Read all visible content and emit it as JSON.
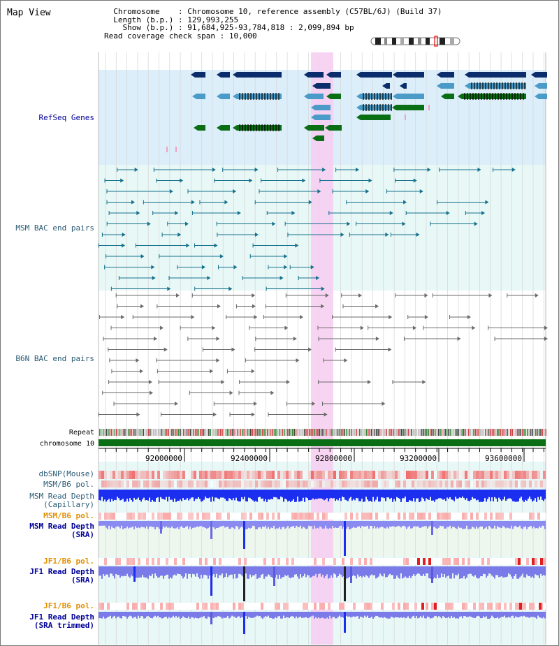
{
  "page": {
    "title": "Map View"
  },
  "info": {
    "chromosome_label": "Chromosome",
    "chromosome_value": "Chromosome 10, reference assembly (C57BL/6J) (Build 37)",
    "length_label": "Length (b.p.)",
    "length_value": "129,993,255",
    "show_label": "Show (b.p.)",
    "show_value": "91,684,925-93,784,818 : 2,099,894 bp",
    "coverage_label": "Read coverage check span",
    "coverage_value": "10,000"
  },
  "tracks": {
    "refseq": "RefSeq Genes",
    "msm_bac": "MSM BAC end pairs",
    "b6n_bac": "B6N BAC end pairs",
    "repeat": "Repeat",
    "chromosome": "chromosome 10",
    "dbsnp": "dbSNP(Mouse)",
    "msm_b6_pol": "MSM/B6 pol.",
    "msm_cap": [
      "MSM Read Depth",
      "(Capillary)"
    ],
    "msm_b6_pol2": "MSM/B6 pol.",
    "msm_sra": [
      "MSM Read Depth",
      "(SRA)"
    ],
    "jf1_b6_pol": "JF1/B6 pol.",
    "jf1_sra": [
      "JF1 Read Depth",
      "(SRA)"
    ],
    "jf1_b6_pol2": "JF1/B6 pol.",
    "jf1_trim": [
      "JF1 Read Depth",
      "(SRA trimmed)"
    ]
  },
  "axis": {
    "ticks": [
      "92000000",
      "92400000",
      "92800000",
      "93200000",
      "93600000"
    ]
  },
  "colors": {
    "refseq_bg": "#dbeefa",
    "bac_bg": "#e8f8f6",
    "highlight": "#f7cdf1",
    "gene_dark": "#0b2d6b",
    "gene_mid": "#4a9bc8",
    "gene_green": "#0a6e14",
    "msm_line": "#13708c",
    "b6n_line": "#6a6a6a",
    "chrom": "#0a6e14",
    "snp": "#ee6b6b",
    "pol": "#f7b9b9",
    "depth_blue": "#1c2ef0",
    "depth_light": "#8a8af0",
    "label_navy": "#000099",
    "label_orange": "#e39000",
    "label_teal": "#2a5b75"
  }
}
